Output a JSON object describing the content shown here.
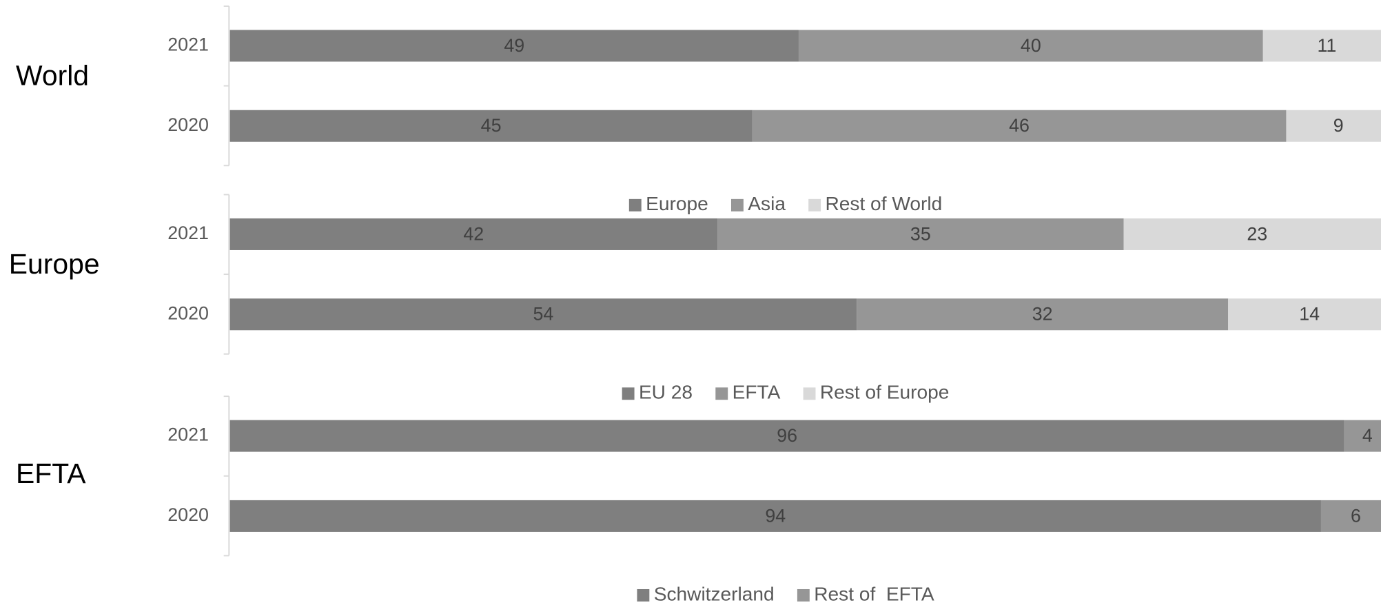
{
  "chart_data": [
    {
      "type": "stacked_bar_h",
      "title": "World",
      "categories": [
        "2021",
        "2020"
      ],
      "xlim": [
        0,
        100
      ],
      "series": [
        {
          "name": "Europe",
          "color": "#7f7f7f",
          "values": [
            49,
            45
          ]
        },
        {
          "name": "Asia",
          "color": "#969696",
          "values": [
            40,
            46
          ]
        },
        {
          "name": "Rest of World",
          "color": "#d9d9d9",
          "values": [
            11,
            9
          ]
        }
      ]
    },
    {
      "type": "stacked_bar_h",
      "title": "Europe",
      "categories": [
        "2021",
        "2020"
      ],
      "xlim": [
        0,
        100
      ],
      "series": [
        {
          "name": "EU 28",
          "color": "#7f7f7f",
          "values": [
            42,
            54
          ]
        },
        {
          "name": "EFTA",
          "color": "#969696",
          "values": [
            35,
            32
          ]
        },
        {
          "name": "Rest of Europe",
          "color": "#d9d9d9",
          "values": [
            23,
            14
          ]
        }
      ]
    },
    {
      "type": "stacked_bar_h",
      "title": "EFTA",
      "categories": [
        "2021",
        "2020"
      ],
      "xlim": [
        0,
        100
      ],
      "series": [
        {
          "name": "Schwitzerland",
          "color": "#7f7f7f",
          "values": [
            96,
            94
          ]
        },
        {
          "name": "Rest of  EFTA",
          "color": "#969696",
          "values": [
            4,
            6
          ]
        }
      ]
    }
  ]
}
